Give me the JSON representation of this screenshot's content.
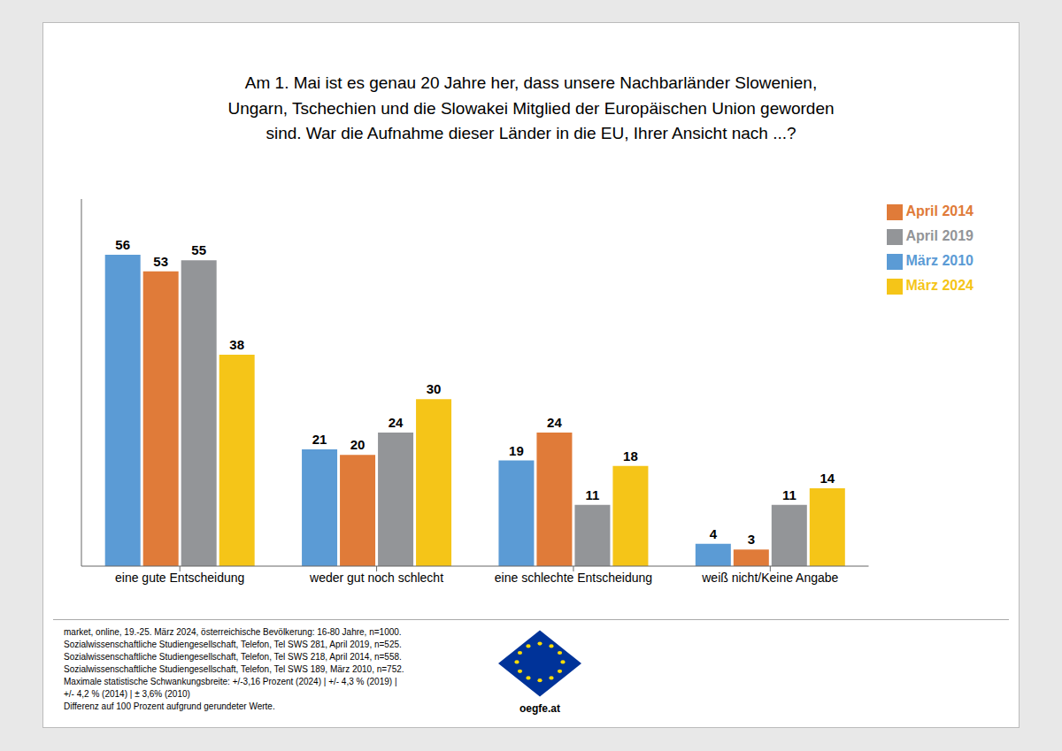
{
  "chart_data": {
    "type": "bar",
    "title": "Am 1. Mai ist es genau 20 Jahre her, dass unsere Nachbarländer Slowenien,\nUngarn, Tschechien und die Slowakei Mitglied der Europäischen Union geworden\nsind. War die Aufnahme dieser Länder in die EU, Ihrer Ansicht nach ...?",
    "categories": [
      "eine gute Entscheidung",
      "weder gut noch schlecht",
      "eine schlechte Entscheidung",
      "weiß nicht/Keine Angabe"
    ],
    "series": [
      {
        "name": "März 2010",
        "color": "#5B9BD5",
        "values": [
          56,
          21,
          19,
          4
        ]
      },
      {
        "name": "April 2014",
        "color": "#E07B39",
        "values": [
          53,
          20,
          24,
          3
        ]
      },
      {
        "name": "April 2019",
        "color": "#939598",
        "values": [
          55,
          24,
          11,
          11
        ]
      },
      {
        "name": "März 2024",
        "color": "#F5C518",
        "values": [
          38,
          30,
          18,
          14
        ]
      }
    ],
    "ylim": [
      0,
      66
    ],
    "tick_labels": "x",
    "data_labels": true,
    "legend": "upper right",
    "grid": false,
    "annotations": [
      "market, online, 19.-25. März 2024, österreichische Bevölkerung: 16-80 Jahre, n=1000.",
      "Sozialwissenschaftliche Studiengesellschaft, Telefon, Tel SWS 281, April 2019, n=525.",
      "Sozialwissenschaftliche Studiengesellschaft, Telefon, Tel SWS 218, April 2014, n=558.",
      "Sozialwissenschaftliche Studiengesellschaft, Telefon, Tel SWS 189, März 2010, n=752.",
      "Maximale statistische Schwankungsbreite: +/-3,16 Prozent (2024) | +/- 4,3 % (2019) |",
      "+/- 4,2 % (2014) | ± 3,6% (2010)",
      "Differenz auf 100 Prozent aufgrund gerundeter Werte.",
      "oegfe.at"
    ]
  }
}
